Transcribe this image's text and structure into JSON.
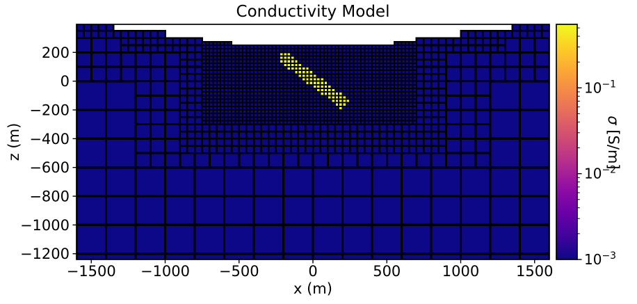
{
  "chart_data": {
    "type": "heatmap",
    "title": "Conductivity Model",
    "axes": {
      "xlabel": "x (m)",
      "ylabel": "z (m)",
      "xlim": [
        -1600,
        1600
      ],
      "ylim": [
        -1240,
        395
      ],
      "xticks": [
        -1500,
        -1000,
        -500,
        0,
        500,
        1000,
        1500
      ],
      "yticks": [
        200,
        0,
        -200,
        -400,
        -600,
        -800,
        -1000,
        -1200
      ],
      "grid": false
    },
    "colorbar": {
      "label": "σ [S/m]",
      "label_symbol": "σ",
      "label_unit": " [S/m]",
      "scale": "log",
      "vmin": 0.001,
      "vmax": 0.55,
      "major_tick_exponents": [
        -1,
        -2,
        -3
      ],
      "colormap": "plasma",
      "colormap_stops": [
        "#0d0887",
        "#41049d",
        "#6a00a8",
        "#8f0da4",
        "#b12a90",
        "#cc4778",
        "#e16462",
        "#f2844b",
        "#fca636",
        "#fcce25",
        "#f0f921"
      ],
      "position": "right"
    },
    "values": {
      "background_conductivity_S_per_m": 0.001,
      "conductor_conductivity_S_per_m": 0.55
    },
    "colors": {
      "background_cell": "#0d0887",
      "conductor_cell": "#f0f921",
      "cell_edge": "#000000",
      "figure_background": "#ffffff"
    },
    "mesh": {
      "description": "QuadTree (TreeMesh) cross-section, cells refined near stepped topography and around a dipping conductor",
      "domain_x": [
        -1600,
        1600
      ],
      "domain_z": [
        -1400,
        400
      ],
      "base_cell_m": 200,
      "cell_sizes_m": [
        200,
        100,
        50,
        25
      ],
      "topography_steps": [
        [
          -1600,
          400
        ],
        [
          -1350,
          350
        ],
        [
          -1000,
          300
        ],
        [
          -750,
          275
        ],
        [
          -550,
          250
        ],
        [
          550,
          275
        ],
        [
          700,
          300
        ],
        [
          1000,
          350
        ],
        [
          1350,
          400
        ]
      ],
      "refine_boxes": {
        "25": {
          "x": [
            -750,
            700
          ],
          "z": [
            -295,
            310
          ]
        },
        "50": {
          "x": [
            -900,
            900
          ],
          "z": [
            -445,
            320
          ]
        },
        "100": {
          "x": [
            -1200,
            1200
          ],
          "z": [
            -595,
            400
          ]
        }
      },
      "surface_depth_50m": 100,
      "surface_depth_100m": 380
    },
    "conductor": {
      "shape": "dipping slab",
      "center_xz": [
        0,
        10
      ],
      "dip_deg": 38,
      "half_length_m": 280,
      "half_width_m": 42
    }
  }
}
